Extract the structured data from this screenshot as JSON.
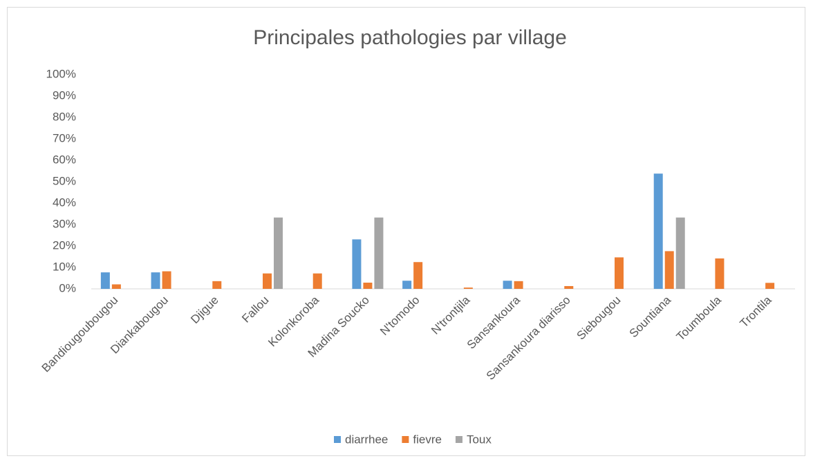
{
  "chart_data": {
    "type": "bar",
    "title": "Principales pathologies par village",
    "categories": [
      "Bandiougoubougou",
      "Diankabougou",
      "Djigue",
      "Fallou",
      "Kolonkoroba",
      "Madina Soucko",
      "N'tomodo",
      "N'trontjila",
      "Sansankoura",
      "Sansankoura diarisso",
      "Siebougou",
      "Sountiana",
      "Toumboula",
      "Trontila"
    ],
    "series": [
      {
        "name": "diarrhee",
        "color": "#5b9bd5",
        "values": [
          7.7,
          7.7,
          0,
          0,
          0,
          23.1,
          3.8,
          0,
          3.8,
          0,
          0,
          53.8,
          0,
          0
        ]
      },
      {
        "name": "fievre",
        "color": "#ed7d31",
        "values": [
          2.1,
          8.2,
          3.6,
          7.2,
          7.2,
          2.9,
          12.5,
          0.6,
          3.6,
          1.3,
          14.7,
          17.6,
          14.2,
          2.8
        ]
      },
      {
        "name": "Toux",
        "color": "#a5a5a5",
        "values": [
          0,
          0,
          0,
          33.3,
          0,
          33.3,
          0,
          0,
          0,
          0,
          0,
          33.3,
          0,
          0
        ]
      }
    ],
    "ylim": [
      0,
      100
    ],
    "yticks": [
      {
        "value": 0,
        "label": "0%"
      },
      {
        "value": 10,
        "label": "10%"
      },
      {
        "value": 20,
        "label": "20%"
      },
      {
        "value": 30,
        "label": "30%"
      },
      {
        "value": 40,
        "label": "40%"
      },
      {
        "value": 50,
        "label": "50%"
      },
      {
        "value": 60,
        "label": "60%"
      },
      {
        "value": 70,
        "label": "70%"
      },
      {
        "value": 80,
        "label": "80%"
      },
      {
        "value": 90,
        "label": "90%"
      },
      {
        "value": 100,
        "label": "100%"
      }
    ],
    "grid": false,
    "legend": "bottom"
  }
}
